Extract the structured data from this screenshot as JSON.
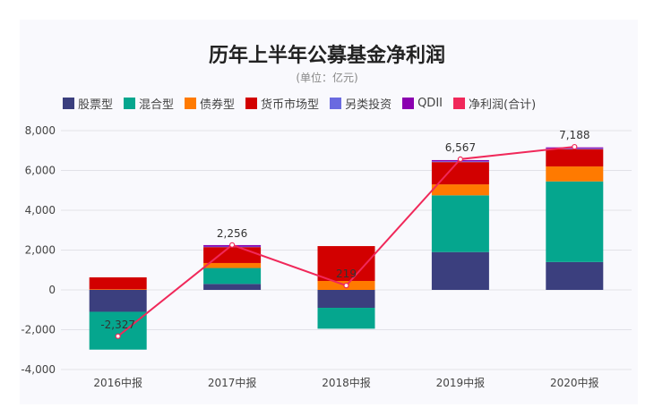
{
  "chart_data": {
    "type": "bar",
    "stacked": true,
    "title": "历年上半年公募基金净利润",
    "subtitle": "(单位：亿元)",
    "categories": [
      "2016中报",
      "2017中报",
      "2018中报",
      "2019中报",
      "2020中报"
    ],
    "ylim": [
      -4000,
      8000
    ],
    "yticks": [
      -4000,
      -2000,
      0,
      2000,
      4000,
      6000,
      8000
    ],
    "ytick_labels": [
      "-4,000",
      "-2,000",
      "0",
      "2,000",
      "4,000",
      "6,000",
      "8,000"
    ],
    "grid": true,
    "legend_position": "top",
    "series": [
      {
        "name": "股票型",
        "color": "#3b3f7e",
        "values": [
          -1100,
          300,
          -900,
          1900,
          1400
        ]
      },
      {
        "name": "混合型",
        "color": "#05a68e",
        "values": [
          -1900,
          800,
          -1050,
          2850,
          4050
        ]
      },
      {
        "name": "债券型",
        "color": "#ff7a00",
        "values": [
          30,
          250,
          450,
          550,
          750
        ]
      },
      {
        "name": "货币市场型",
        "color": "#d20000",
        "values": [
          600,
          800,
          1750,
          1120,
          870
        ]
      },
      {
        "name": "另类投资",
        "color": "#6a6ae0",
        "values": [
          0,
          30,
          0,
          40,
          40
        ]
      },
      {
        "name": "QDII",
        "color": "#8b00b0",
        "values": [
          0,
          70,
          0,
          60,
          50
        ]
      }
    ],
    "line": {
      "name": "净利润(合计)",
      "color": "#f0285a",
      "values": [
        -2327,
        2256,
        219,
        6567,
        7188
      ],
      "labels": [
        "-2,327",
        "2,256",
        "219",
        "6,567",
        "7,188"
      ]
    }
  }
}
